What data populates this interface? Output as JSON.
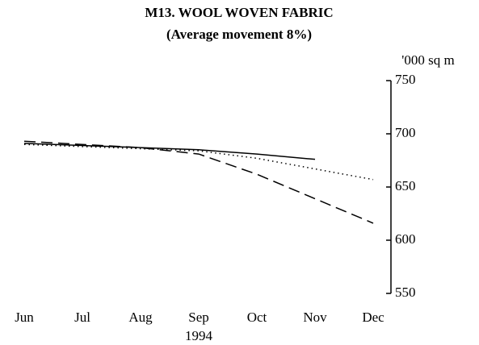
{
  "chart_data": {
    "type": "line",
    "title": "M13. WOOL WOVEN FABRIC",
    "subtitle": "(Average movement 8%)",
    "y_axis_label": "'000 sq m",
    "year_label": "1994",
    "categories": [
      "Jun",
      "Jul",
      "Aug",
      "Sep",
      "Oct",
      "Nov",
      "Dec"
    ],
    "series": [
      {
        "color": "#000000",
        "style": "solid",
        "values": [
          691,
          689,
          687,
          685,
          681,
          676,
          null
        ]
      },
      {
        "color": "#000000",
        "style": "dashed",
        "values": [
          693,
          690,
          687,
          681,
          662,
          639,
          616
        ]
      },
      {
        "color": "#000000",
        "style": "dotted",
        "values": [
          690,
          688,
          686,
          684,
          677,
          667,
          657
        ]
      }
    ],
    "ylim": [
      550,
      750
    ],
    "yticks": [
      550,
      600,
      650,
      700,
      750
    ],
    "y_axis_side": "right"
  }
}
